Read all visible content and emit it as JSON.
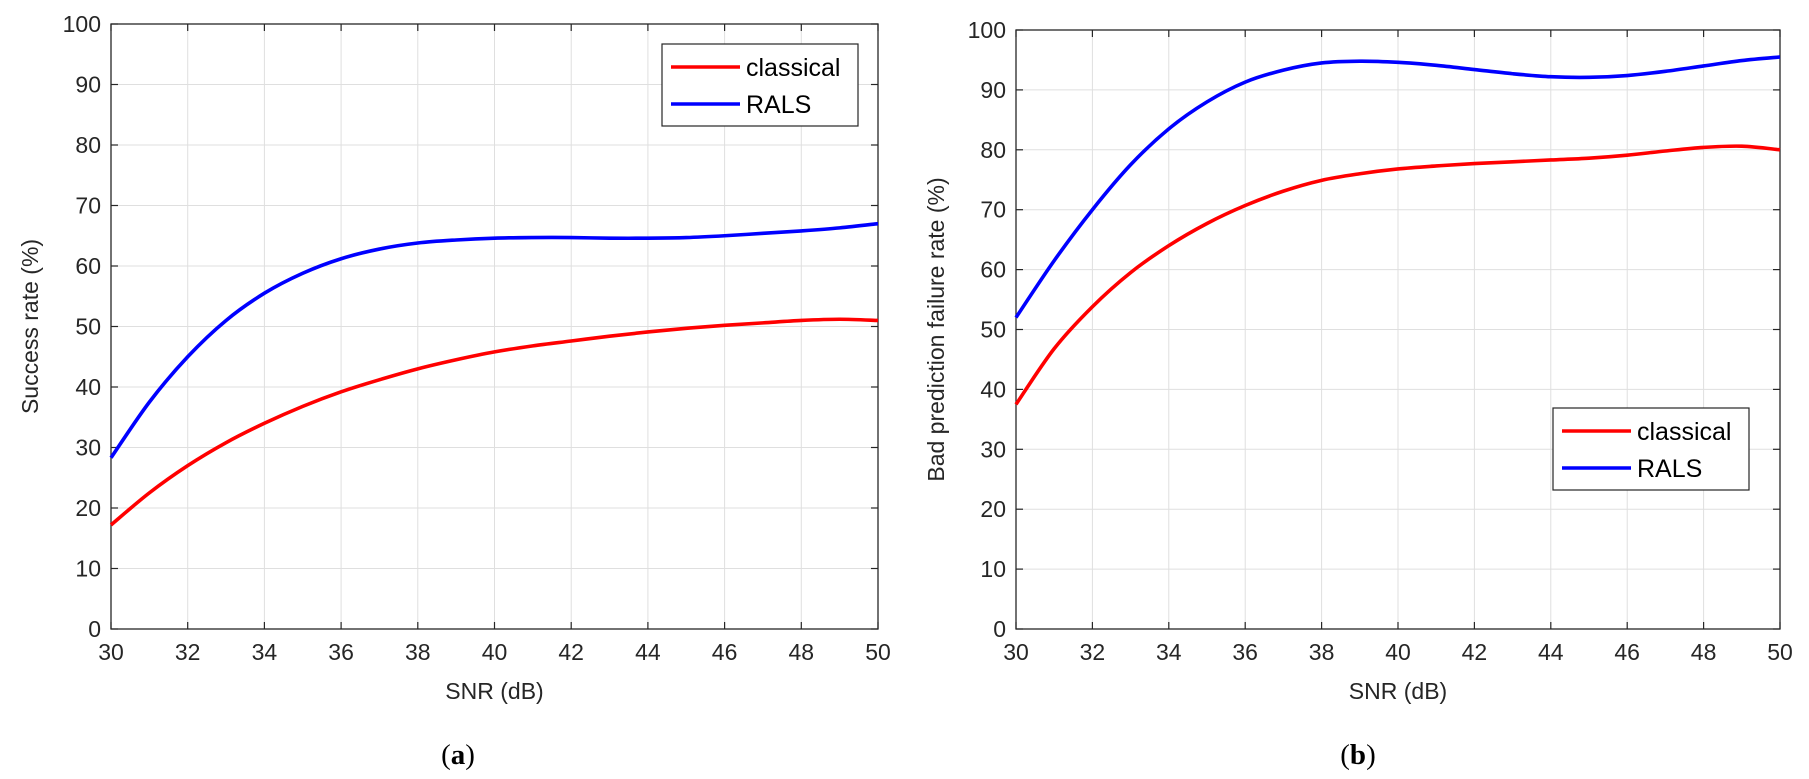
{
  "chart_data": [
    {
      "panel": "(a)",
      "caption_letter": "a",
      "type": "line",
      "xlabel": "SNR (dB)",
      "ylabel": "Success rate (%)",
      "xlim": [
        30,
        50
      ],
      "ylim": [
        0,
        100
      ],
      "xticks": [
        30,
        32,
        34,
        36,
        38,
        40,
        42,
        44,
        46,
        48,
        50
      ],
      "yticks": [
        0,
        10,
        20,
        30,
        40,
        50,
        60,
        70,
        80,
        90,
        100
      ],
      "grid": true,
      "legend_position": "top-right",
      "series": [
        {
          "name": "classical",
          "color": "#ff0000",
          "x": [
            30,
            31,
            32,
            33,
            34,
            35,
            36,
            37,
            38,
            39,
            40,
            41,
            42,
            43,
            44,
            45,
            46,
            47,
            48,
            49,
            50
          ],
          "y": [
            17.2,
            22.5,
            27,
            30.8,
            34,
            36.8,
            39.2,
            41.2,
            43,
            44.5,
            45.8,
            46.8,
            47.6,
            48.4,
            49.1,
            49.7,
            50.2,
            50.6,
            51,
            51.2,
            51
          ]
        },
        {
          "name": "RALS",
          "color": "#0000ff",
          "x": [
            30,
            31,
            32,
            33,
            34,
            35,
            36,
            37,
            38,
            39,
            40,
            41,
            42,
            43,
            44,
            45,
            46,
            47,
            48,
            49,
            50
          ],
          "y": [
            28.3,
            37.5,
            45,
            51,
            55.5,
            58.8,
            61.2,
            62.8,
            63.8,
            64.3,
            64.6,
            64.7,
            64.7,
            64.6,
            64.6,
            64.7,
            65,
            65.4,
            65.8,
            66.3,
            67
          ]
        }
      ]
    },
    {
      "panel": "(b)",
      "caption_letter": "b",
      "type": "line",
      "xlabel": "SNR (dB)",
      "ylabel": "Bad prediction failure rate (%)",
      "xlim": [
        30,
        50
      ],
      "ylim": [
        0,
        100
      ],
      "xticks": [
        30,
        32,
        34,
        36,
        38,
        40,
        42,
        44,
        46,
        48,
        50
      ],
      "yticks": [
        0,
        10,
        20,
        30,
        40,
        50,
        60,
        70,
        80,
        90,
        100
      ],
      "grid": true,
      "legend_position": "bottom-right",
      "series": [
        {
          "name": "classical",
          "color": "#ff0000",
          "x": [
            30,
            31,
            32,
            33,
            34,
            35,
            36,
            37,
            38,
            39,
            40,
            41,
            42,
            43,
            44,
            45,
            46,
            47,
            48,
            49,
            50
          ],
          "y": [
            37.5,
            46.8,
            53.8,
            59.5,
            64,
            67.7,
            70.7,
            73.1,
            74.9,
            76,
            76.8,
            77.3,
            77.7,
            78,
            78.3,
            78.6,
            79.1,
            79.8,
            80.4,
            80.6,
            80
          ]
        },
        {
          "name": "RALS",
          "color": "#0000ff",
          "x": [
            30,
            31,
            32,
            33,
            34,
            35,
            36,
            37,
            38,
            39,
            40,
            41,
            42,
            43,
            44,
            45,
            46,
            47,
            48,
            49,
            50
          ],
          "y": [
            52,
            61.5,
            70,
            77.5,
            83.5,
            88,
            91.3,
            93.3,
            94.5,
            94.8,
            94.6,
            94.1,
            93.4,
            92.7,
            92.2,
            92.1,
            92.4,
            93.1,
            94,
            94.9,
            95.5
          ]
        }
      ]
    }
  ]
}
